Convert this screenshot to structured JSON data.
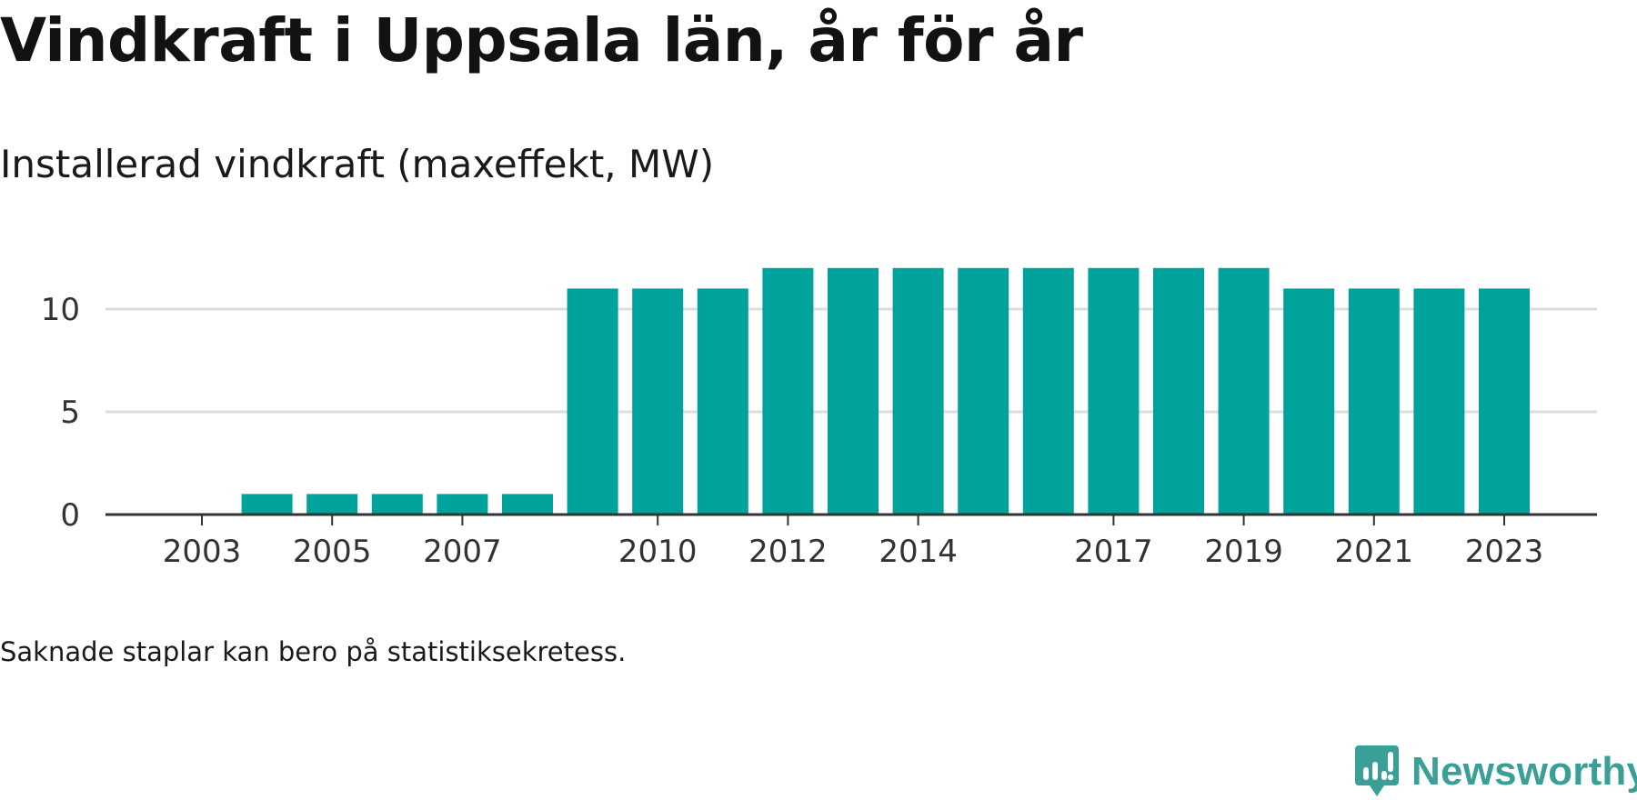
{
  "title": "Vindkraft i Uppsala län, år för år",
  "subtitle": "Installerad vindkraft (maxeffekt, MW)",
  "note": "Saknade staplar kan bero på statistiksekretess.",
  "brand": {
    "name": "Newsworthy",
    "icon": "newsworthy-logo-icon",
    "color": "#3a9f97"
  },
  "colors": {
    "bar": "#00a39b",
    "grid": "#dddddd",
    "axis": "#333333"
  },
  "chart_data": {
    "type": "bar",
    "title": "Vindkraft i Uppsala län, år för år",
    "subtitle": "Installerad vindkraft (maxeffekt, MW)",
    "xlabel": "",
    "ylabel": "",
    "categories": [
      2003,
      2004,
      2005,
      2006,
      2007,
      2008,
      2009,
      2010,
      2011,
      2012,
      2013,
      2014,
      2015,
      2016,
      2017,
      2018,
      2019,
      2020,
      2021,
      2022,
      2023
    ],
    "values": [
      0,
      1,
      1,
      1,
      1,
      1,
      11,
      11,
      11,
      12,
      12,
      12,
      12,
      12,
      12,
      12,
      12,
      11,
      11,
      11,
      11
    ],
    "x_tick_labels": [
      "2003",
      "2005",
      "2007",
      "2010",
      "2012",
      "2014",
      "2017",
      "2019",
      "2021",
      "2023"
    ],
    "y_ticks": [
      0,
      5,
      10
    ],
    "ylim": [
      0,
      12
    ],
    "grid": true,
    "legend": "none"
  }
}
